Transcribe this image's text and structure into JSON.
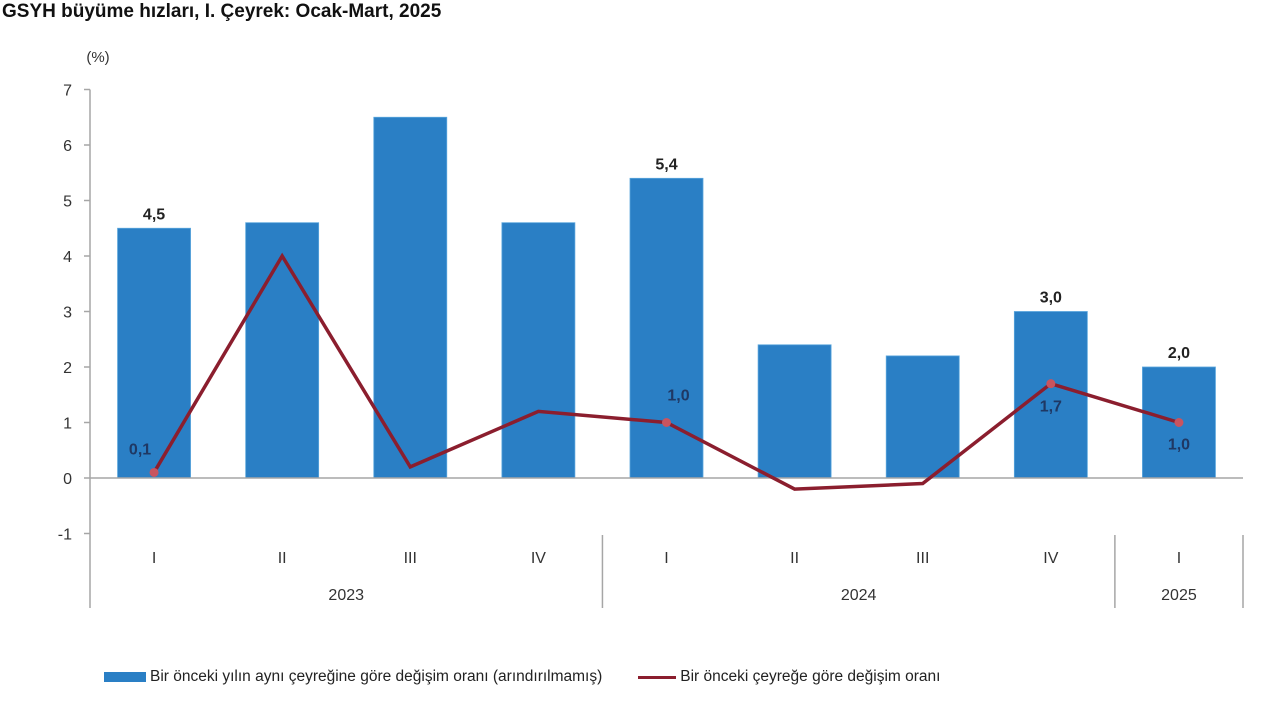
{
  "chart_data": {
    "type": "bar",
    "title": "GSYH büyüme hızları, I. Çeyrek: Ocak-Mart, 2025",
    "ylabel": "(%)",
    "xlabel": "",
    "ylim": [
      -1,
      7
    ],
    "yticks": [
      -1,
      0,
      1,
      2,
      3,
      4,
      5,
      6,
      7
    ],
    "grid": false,
    "legend_position": "bottom",
    "categories": [
      "I",
      "II",
      "III",
      "IV",
      "I",
      "II",
      "III",
      "IV",
      "I"
    ],
    "groups": [
      {
        "label": "2023",
        "span": 4
      },
      {
        "label": "2024",
        "span": 4
      },
      {
        "label": "2025",
        "span": 1
      }
    ],
    "series": [
      {
        "name": "Bir önceki yılın aynı çeyreğine göre değişim oranı (arındırılmamış)",
        "type": "bar",
        "color": "#2a7fc5",
        "values": [
          4.5,
          4.6,
          6.5,
          4.6,
          5.4,
          2.4,
          2.2,
          3.0,
          2.0
        ],
        "labels": [
          "4,5",
          "",
          "",
          "",
          "5,4",
          "",
          "",
          "3,0",
          "2,0"
        ]
      },
      {
        "name": "Bir önceki çeyreğe göre değişim oranı",
        "type": "line",
        "color": "#8b1e2e",
        "values": [
          0.1,
          4.0,
          0.2,
          1.2,
          1.0,
          -0.2,
          -0.1,
          1.7,
          1.0
        ],
        "labels": [
          "0,1",
          "",
          "",
          "",
          "1,0",
          "",
          "",
          "1,7",
          "1,0"
        ]
      }
    ]
  },
  "header": {
    "title": "GSYH büyüme hızları, I. Çeyrek: Ocak-Mart, 2025",
    "unit": "(%)"
  },
  "legend": {
    "bar_label": "Bir önceki yılın aynı çeyreğine göre değişim oranı (arındırılmamış)",
    "line_label": "Bir önceki çeyreğe göre değişim oranı"
  }
}
